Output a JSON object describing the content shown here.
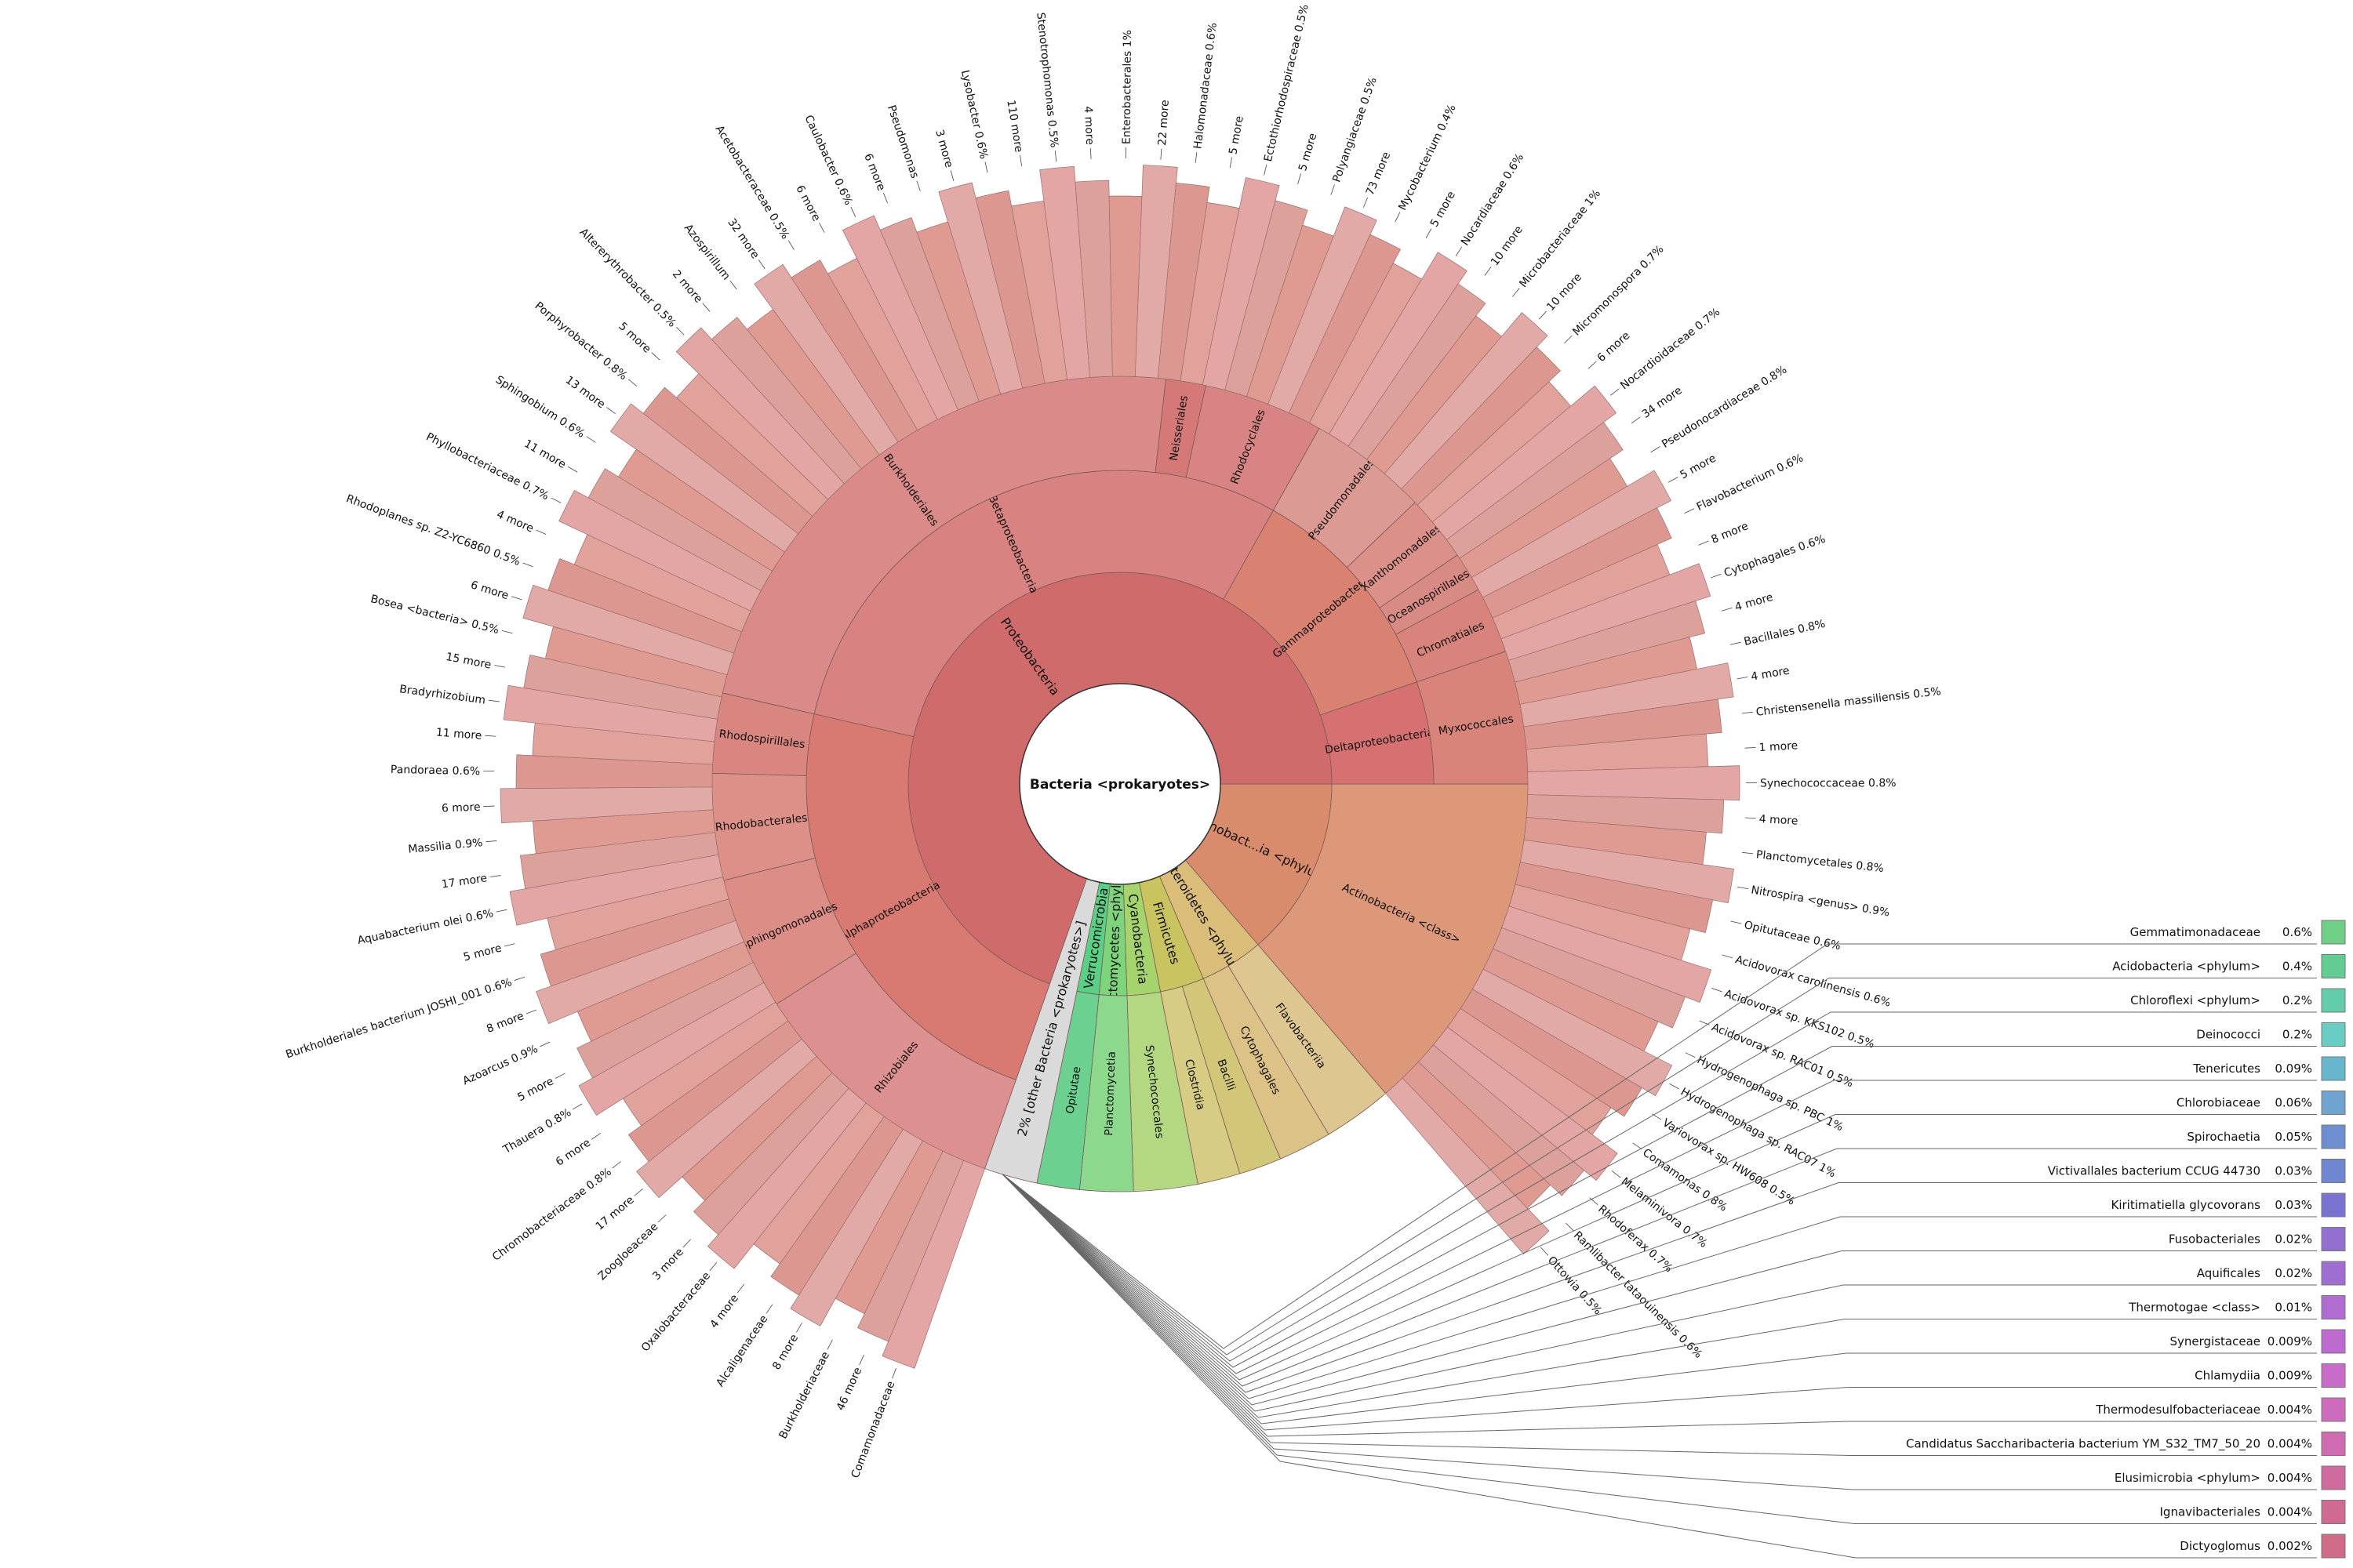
{
  "chart_data": {
    "type": "sunburst",
    "title": "",
    "center_label": "Bacteria <prokaryotes>",
    "nodes": [
      {
        "id": "proteo",
        "parent": "",
        "name": "Proteobacteria",
        "value": 66.0,
        "color": "#cf6b6b",
        "show_pct": false
      },
      {
        "id": "other",
        "parent": "",
        "name": "[other Bacteria <prokaryotes>]",
        "value": 2.0,
        "color": "#dadada",
        "show_pct": true
      },
      {
        "id": "firm",
        "parent": "",
        "name": "Firmicutes",
        "value": 3.2,
        "color": "#c9c460",
        "show_pct": false
      },
      {
        "id": "cyano",
        "parent": "",
        "name": "Cyanobacteria",
        "value": 2.4,
        "color": "#a6d46c",
        "show_pct": false
      },
      {
        "id": "plancto",
        "parent": "",
        "name": "Planctomycetes <phylum>",
        "value": 2.0,
        "color": "#7ed47a",
        "show_pct": false
      },
      {
        "id": "verruco",
        "parent": "",
        "name": "Verrucomicrobia",
        "value": 1.6,
        "color": "#5ccf86",
        "show_pct": false
      },
      {
        "id": "bacteroid",
        "parent": "",
        "name": "Bacteroidetes <phylum>",
        "value": 4.6,
        "color": "#d9bd78",
        "show_pct": false
      },
      {
        "id": "actino",
        "parent": "",
        "name": "Actinobact...ia <phylum>",
        "value": 13.0,
        "color": "#d98c6b",
        "show_pct": false
      },
      {
        "id": "alpha",
        "parent": "proteo",
        "name": "Alphaproteobacteria",
        "value": 22.0,
        "color": "#d97a72"
      },
      {
        "id": "beta",
        "parent": "proteo",
        "name": "Betaproteobacteria",
        "value": 28.0,
        "color": "#d88282"
      },
      {
        "id": "gamma",
        "parent": "proteo",
        "name": "Gammaproteobacteria",
        "value": 11.0,
        "color": "#d98272"
      },
      {
        "id": "delta",
        "parent": "proteo",
        "name": "Deltaproteobacteria",
        "value": 5.0,
        "color": "#d77070"
      },
      {
        "id": "burk",
        "parent": "beta",
        "name": "Burkholderiales",
        "value": 22.0,
        "color": "#db8a8a"
      },
      {
        "id": "neiss",
        "parent": "beta",
        "name": "Neisseriales",
        "value": 1.5,
        "color": "#d47878"
      },
      {
        "id": "rhodocy",
        "parent": "beta",
        "name": "Rhodocyclales",
        "value": 4.5,
        "color": "#d98484"
      },
      {
        "id": "rhizob",
        "parent": "alpha",
        "name": "Rhizobiales",
        "value": 10.0,
        "color": "#dd9090"
      },
      {
        "id": "sphingo",
        "parent": "alpha",
        "name": "Sphingomonadales",
        "value": 5.0,
        "color": "#dc8e86"
      },
      {
        "id": "rhodob",
        "parent": "alpha",
        "name": "Rhodobacterales",
        "value": 4.0,
        "color": "#dc9088"
      },
      {
        "id": "rhodosp",
        "parent": "alpha",
        "name": "Rhodospirillales",
        "value": 3.0,
        "color": "#d98680"
      },
      {
        "id": "pseudoord",
        "parent": "gamma",
        "name": "Pseudomonadales",
        "value": 4.5,
        "color": "#dc9a94"
      },
      {
        "id": "xanthoord",
        "parent": "gamma",
        "name": "Xanthomonadales",
        "value": 2.5,
        "color": "#db908a"
      },
      {
        "id": "oceano",
        "parent": "gamma",
        "name": "Oceanospirillales",
        "value": 1.5,
        "color": "#d88a84"
      },
      {
        "id": "chroma",
        "parent": "gamma",
        "name": "Chromatiales",
        "value": 2.5,
        "color": "#d8847c"
      },
      {
        "id": "myxo",
        "parent": "delta",
        "name": "Myxococcales",
        "value": 5.0,
        "color": "#d8847a"
      },
      {
        "id": "actclass",
        "parent": "actino",
        "name": "Actinobacteria <class>",
        "value": 13.0,
        "color": "#dc9878"
      },
      {
        "id": "bacil",
        "parent": "firm",
        "name": "Bacilli",
        "value": 1.6,
        "color": "#d2c678"
      },
      {
        "id": "clost",
        "parent": "firm",
        "name": "Clostridia",
        "value": 1.6,
        "color": "#d6cc84"
      },
      {
        "id": "synecho",
        "parent": "cyano",
        "name": "Synechococcales",
        "value": 2.4,
        "color": "#b4d882"
      },
      {
        "id": "planctomycetia",
        "parent": "plancto",
        "name": "Planctomycetia",
        "value": 2.0,
        "color": "#8cd88c"
      },
      {
        "id": "opitutae",
        "parent": "verruco",
        "name": "Opitutae",
        "value": 1.6,
        "color": "#6cd090"
      },
      {
        "id": "flavobact",
        "parent": "bacteroid",
        "name": "Flavobacteriia",
        "value": 2.6,
        "color": "#dec690"
      },
      {
        "id": "cytoph",
        "parent": "bacteroid",
        "name": "Cytophagales",
        "value": 2.0,
        "color": "#ddc288"
      }
    ],
    "outer_labels": [
      {
        "text": "Comamonadaceae",
        "pct": ""
      },
      {
        "text": "Burkholderiaceae",
        "pct": ""
      },
      {
        "text": "Alcaligenaceae",
        "pct": ""
      },
      {
        "text": "Oxalobacteraceae",
        "pct": ""
      },
      {
        "text": "Zoogloeaceae",
        "pct": ""
      },
      {
        "text": "Chromobacteriaceae",
        "pct": "0.8%"
      },
      {
        "text": "Thauera",
        "pct": "0.8%"
      },
      {
        "text": "Azoarcus",
        "pct": "0.9%"
      },
      {
        "text": "Burkholderiales bacterium JOSHI_001",
        "pct": "0.6%"
      },
      {
        "text": "Aquabacterium olei",
        "pct": "0.6%"
      },
      {
        "text": "Massilia",
        "pct": "0.9%"
      },
      {
        "text": "Pandoraea",
        "pct": "0.6%"
      },
      {
        "text": "Bradyrhizobium",
        "pct": ""
      },
      {
        "text": "Bosea <bacteria>",
        "pct": "0.5%"
      },
      {
        "text": "Rhodoplanes sp. Z2-YC6860",
        "pct": "0.5%"
      },
      {
        "text": "Phyllobacteriaceae",
        "pct": "0.7%"
      },
      {
        "text": "Sphingobium",
        "pct": "0.6%"
      },
      {
        "text": "Porphyrobacter",
        "pct": "0.8%"
      },
      {
        "text": "Altererythrobacter",
        "pct": "0.5%"
      },
      {
        "text": "Azospirillum",
        "pct": ""
      },
      {
        "text": "Acetobacteraceae",
        "pct": "0.5%"
      },
      {
        "text": "Caulobacter",
        "pct": "0.6%"
      },
      {
        "text": "Pseudomonas",
        "pct": ""
      },
      {
        "text": "Lysobacter",
        "pct": "0.6%"
      },
      {
        "text": "Stenotrophomonas",
        "pct": "0.5%"
      },
      {
        "text": "Enterobacterales",
        "pct": "1%"
      },
      {
        "text": "Halomonadaceae",
        "pct": "0.6%"
      },
      {
        "text": "Ectothiorhodospiraceae",
        "pct": "0.5%"
      },
      {
        "text": "Polyangiaceae",
        "pct": "0.5%"
      },
      {
        "text": "Mycobacterium",
        "pct": "0.4%"
      },
      {
        "text": "Nocardiaceae",
        "pct": "0.6%"
      },
      {
        "text": "Microbacteriaceae",
        "pct": "1%"
      },
      {
        "text": "Micromonospora",
        "pct": "0.7%"
      },
      {
        "text": "Nocardioidaceae",
        "pct": "0.7%"
      },
      {
        "text": "Pseudonocardiaceae",
        "pct": "0.8%"
      },
      {
        "text": "Flavobacterium",
        "pct": "0.6%"
      },
      {
        "text": "Cytophagales",
        "pct": "0.6%"
      },
      {
        "text": "Bacillales",
        "pct": "0.8%"
      },
      {
        "text": "Christensenella massiliensis",
        "pct": "0.5%"
      },
      {
        "text": "Synechococcaceae",
        "pct": "0.8%"
      },
      {
        "text": "Planctomycetales",
        "pct": "0.8%"
      },
      {
        "text": "Nitrospira <genus>",
        "pct": "0.9%"
      },
      {
        "text": "Opitutaceae",
        "pct": "0.6%"
      },
      {
        "text": "Acidovorax carolinensis",
        "pct": "0.6%"
      },
      {
        "text": "Acidovorax sp. KKS102",
        "pct": "0.5%"
      },
      {
        "text": "Acidovorax sp. RAC01",
        "pct": "0.5%"
      },
      {
        "text": "Hydrogenophaga sp. PBC",
        "pct": "1%"
      },
      {
        "text": "Hydrogenophaga sp. RAC07",
        "pct": "1%"
      },
      {
        "text": "Variovorax sp. HW608",
        "pct": "0.5%"
      },
      {
        "text": "Comamonas",
        "pct": "0.8%"
      },
      {
        "text": "Melaminivora",
        "pct": "0.7%"
      },
      {
        "text": "Rhodoferax",
        "pct": "0.7%"
      },
      {
        "text": "Ramlibacter tataouinensis",
        "pct": "0.6%"
      },
      {
        "text": "Ottowia",
        "pct": "0.5%"
      }
    ],
    "more_labels": [
      "46 more",
      "8 more",
      "4 more",
      "3 more",
      "17 more",
      "6 more",
      "5 more",
      "8 more",
      "5 more",
      "17 more",
      "6 more",
      "11 more",
      "15 more",
      "6 more",
      "4 more",
      "11 more",
      "13 more",
      "5 more",
      "2 more",
      "32 more",
      "6 more",
      "6 more",
      "3 more",
      "110 more",
      "4 more",
      "22 more",
      "5 more",
      "5 more",
      "73 more",
      "5 more",
      "10 more",
      "10 more",
      "6 more",
      "34 more",
      "5 more",
      "8 more",
      "4 more",
      "4 more",
      "1 more",
      "4 more"
    ],
    "other_legend": [
      {
        "name": "Gemmatimonadaceae",
        "pct": "0.6%",
        "color": "#6fcf86"
      },
      {
        "name": "Acidobacteria <phylum>",
        "pct": "0.4%",
        "color": "#62cc92"
      },
      {
        "name": "Chloroflexi <phylum>",
        "pct": "0.2%",
        "color": "#63ccaa"
      },
      {
        "name": "Deinococci",
        "pct": "0.2%",
        "color": "#69cdc4"
      },
      {
        "name": "Tenericutes",
        "pct": "0.09%",
        "color": "#68b6cc"
      },
      {
        "name": "Chlorobiaceae",
        "pct": "0.06%",
        "color": "#6ea4cf"
      },
      {
        "name": "Spirochaetia",
        "pct": "0.05%",
        "color": "#6e8fcf"
      },
      {
        "name": "Victivallales bacterium CCUG 44730",
        "pct": "0.03%",
        "color": "#6f86d0"
      },
      {
        "name": "Kiritimatiella glycovorans",
        "pct": "0.03%",
        "color": "#7b73d0"
      },
      {
        "name": "Fusobacteriales",
        "pct": "0.02%",
        "color": "#9370d0"
      },
      {
        "name": "Aquificales",
        "pct": "0.02%",
        "color": "#a06dd0"
      },
      {
        "name": "Thermotogae <class>",
        "pct": "0.01%",
        "color": "#b06ccf"
      },
      {
        "name": "Synergistaceae",
        "pct": "0.009%",
        "color": "#be6bcf"
      },
      {
        "name": "Chlamydiia",
        "pct": "0.009%",
        "color": "#c96bc9"
      },
      {
        "name": "Thermodesulfobacteriaceae",
        "pct": "0.004%",
        "color": "#cf6bbd"
      },
      {
        "name": "Candidatus Saccharibacteria bacterium YM_S32_TM7_50_20",
        "pct": "0.004%",
        "color": "#cf6bb0"
      },
      {
        "name": "Elusimicrobia <phylum>",
        "pct": "0.004%",
        "color": "#cf6b9f"
      },
      {
        "name": "Ignavibacteriales",
        "pct": "0.004%",
        "color": "#cf6b92"
      },
      {
        "name": "Dictyoglomus",
        "pct": "0.002%",
        "color": "#cf6b86"
      }
    ]
  }
}
